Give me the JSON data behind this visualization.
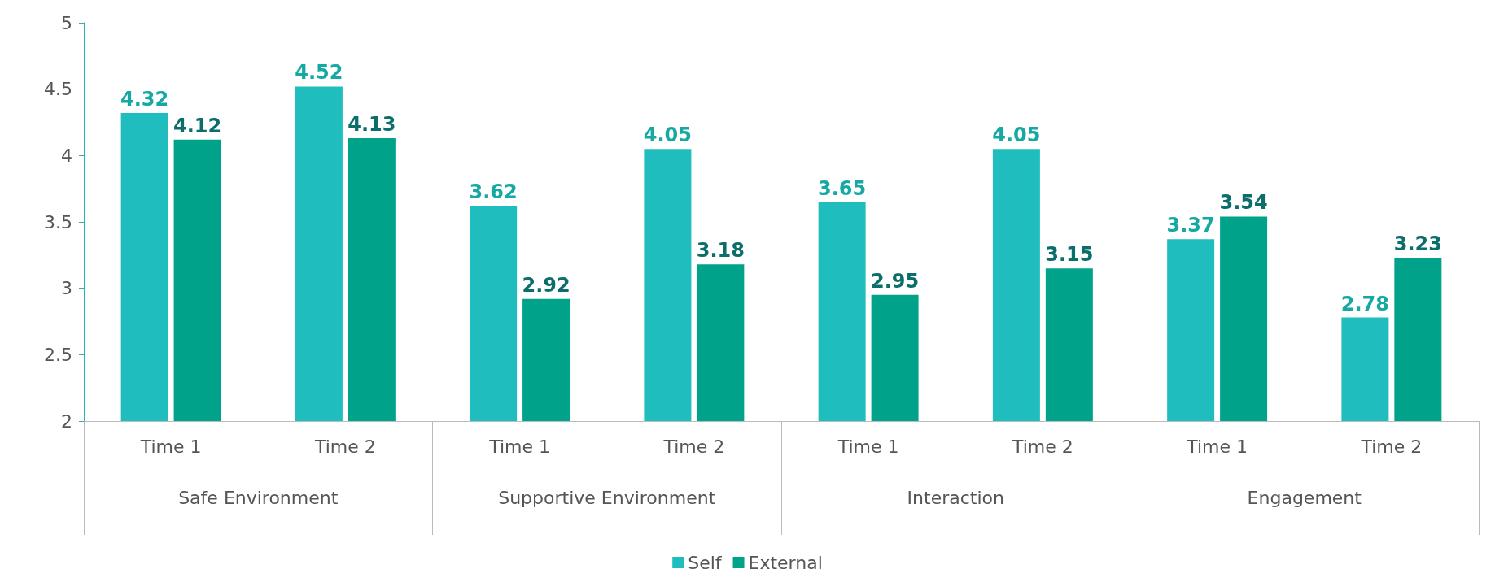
{
  "chart_data": {
    "type": "bar",
    "categories": [
      "Time 1",
      "Time 2",
      "Time 1",
      "Time 2",
      "Time 1",
      "Time 2",
      "Time 1",
      "Time 2"
    ],
    "series": [
      {
        "name": "Self",
        "color": "#20bdbe",
        "values": [
          4.32,
          4.52,
          3.62,
          4.05,
          3.65,
          4.05,
          3.37,
          2.78
        ]
      },
      {
        "name": "External",
        "color": "#00a38a",
        "values": [
          4.12,
          4.13,
          2.92,
          3.18,
          2.95,
          3.15,
          3.54,
          3.23
        ]
      }
    ],
    "annotations": [
      "Safe Environment",
      "Supportive Environment",
      "Interaction",
      "Engagement"
    ],
    "ylim": [
      2,
      5
    ],
    "yticks": [
      2,
      2.5,
      3,
      3.5,
      4,
      4.5,
      5
    ],
    "data_labels": true,
    "grid": false,
    "legend": "bottom"
  }
}
